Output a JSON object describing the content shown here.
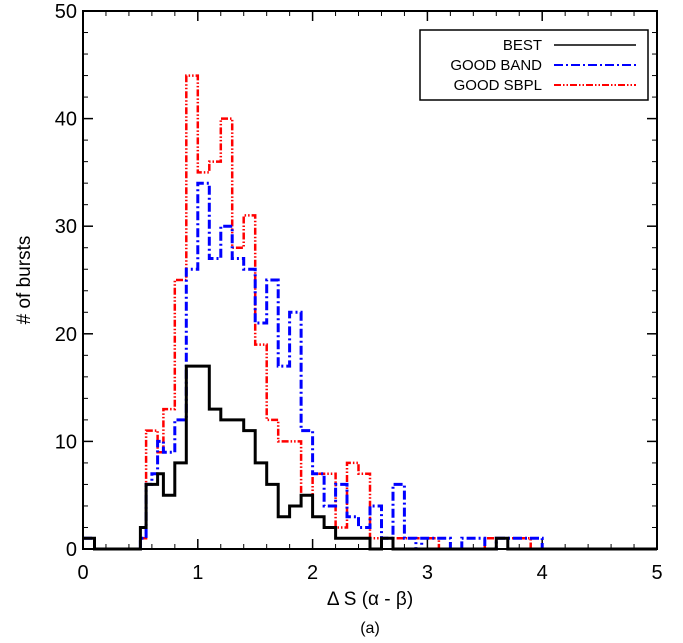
{
  "chart_data": {
    "type": "line",
    "subtype": "step-histogram",
    "xlabel": "Δ S (α - β)",
    "ylabel": "# of bursts",
    "caption": "(a)",
    "xlim": [
      0,
      5
    ],
    "ylim": [
      0,
      50
    ],
    "xticks": [
      0,
      1,
      2,
      3,
      4,
      5
    ],
    "yticks": [
      0,
      10,
      20,
      30,
      40,
      50
    ],
    "legend_position": "top-right",
    "bin_edges": [
      0,
      0.1,
      0.2,
      0.3,
      0.4,
      0.5,
      0.55,
      0.6,
      0.65,
      0.7,
      0.75,
      0.8,
      0.85,
      0.9,
      0.95,
      1.0,
      1.05,
      1.1,
      1.15,
      1.2,
      1.25,
      1.3,
      1.35,
      1.4,
      1.45,
      1.5,
      1.55,
      1.6,
      1.65,
      1.7,
      1.75,
      1.8,
      1.85,
      1.9,
      1.95,
      2.0,
      2.05,
      2.1,
      2.15,
      2.2,
      2.25,
      2.3,
      2.35,
      2.4,
      2.45,
      2.5,
      2.55,
      2.6,
      2.65,
      2.7,
      2.75,
      2.8,
      2.85,
      2.9,
      2.95,
      3.0,
      3.1,
      3.2,
      3.3,
      3.4,
      3.5,
      3.6,
      3.7,
      3.8,
      3.9,
      4.0,
      4.1,
      4.2,
      4.3,
      4.4,
      4.5,
      4.6,
      4.7,
      4.8,
      4.9,
      5.0
    ],
    "series": [
      {
        "name": "BEST",
        "color": "#000000",
        "dash": "solid",
        "values": [
          1,
          0,
          0,
          0,
          0,
          2,
          6,
          6,
          7,
          5,
          5,
          8,
          8,
          17,
          17,
          17,
          17,
          13,
          13,
          12,
          12,
          12,
          12,
          11,
          11,
          8,
          8,
          6,
          6,
          3,
          3,
          4,
          4,
          5,
          5,
          3,
          3,
          2,
          2,
          1,
          1,
          1,
          1,
          1,
          1,
          0,
          0,
          1,
          1,
          0,
          0,
          0,
          0,
          0,
          0,
          0,
          0,
          0,
          0,
          0,
          0,
          1,
          0,
          0,
          0,
          0,
          0,
          0,
          0,
          0,
          0,
          0,
          0,
          0,
          0
        ]
      },
      {
        "name": "GOOD BAND",
        "color": "#0000ff",
        "dash": "dash-dot",
        "values": [
          1,
          0,
          0,
          0,
          0,
          1,
          6,
          7,
          10,
          9,
          9,
          12,
          12,
          26,
          26,
          34,
          34,
          27,
          27,
          30,
          30,
          27,
          27,
          26,
          26,
          21,
          21,
          25,
          25,
          17,
          17,
          22,
          22,
          11,
          11,
          7,
          7,
          4,
          4,
          6,
          6,
          3,
          3,
          2,
          2,
          4,
          4,
          1,
          1,
          6,
          6,
          1,
          1,
          0,
          1,
          1,
          1,
          0,
          1,
          1,
          0,
          1,
          1,
          1,
          1,
          0,
          0,
          0,
          0,
          0,
          0,
          0,
          0,
          0,
          0
        ]
      },
      {
        "name": "GOOD SBPL",
        "color": "#ff0000",
        "dash": "dash-dot-dot",
        "values": [
          1,
          0,
          0,
          0,
          0,
          1,
          11,
          11,
          9,
          13,
          13,
          25,
          25,
          44,
          44,
          35,
          35,
          36,
          36,
          40,
          40,
          28,
          28,
          31,
          31,
          19,
          19,
          12,
          12,
          10,
          10,
          10,
          10,
          5,
          5,
          7,
          7,
          7,
          7,
          2,
          2,
          8,
          8,
          7,
          7,
          1,
          1,
          1,
          1,
          1,
          1,
          1,
          1,
          1,
          1,
          1,
          0,
          0,
          0,
          0,
          1,
          1,
          1,
          1,
          0,
          0,
          0,
          0,
          0,
          0,
          0,
          0,
          0,
          0,
          0
        ]
      }
    ]
  }
}
